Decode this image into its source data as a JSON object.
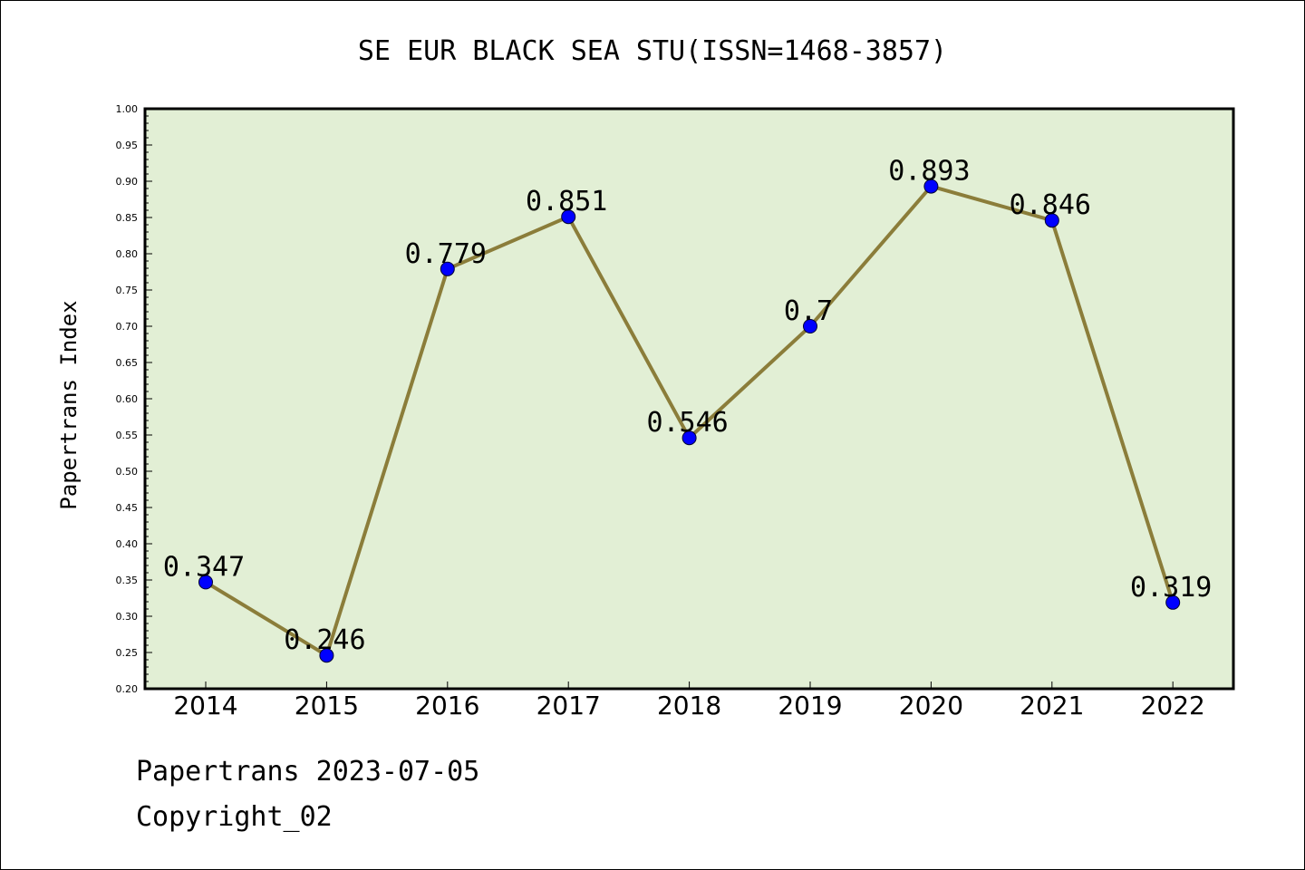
{
  "chart_data": {
    "type": "line",
    "title": "SE EUR BLACK SEA STU(ISSN=1468-3857)",
    "xlabel": "",
    "ylabel": "Papertrans Index",
    "x": [
      "2014",
      "2015",
      "2016",
      "2017",
      "2018",
      "2019",
      "2020",
      "2021",
      "2022"
    ],
    "values": [
      0.347,
      0.246,
      0.779,
      0.851,
      0.546,
      0.7,
      0.893,
      0.846,
      0.319
    ],
    "data_labels": [
      "0.347",
      "0.246",
      "0.779",
      "0.851",
      "0.546",
      "0.7",
      "0.893",
      "0.846",
      "0.319"
    ],
    "ylim": [
      0.2,
      1.0
    ],
    "yticks": [
      "0.20",
      "0.25",
      "0.30",
      "0.35",
      "0.40",
      "0.45",
      "0.50",
      "0.55",
      "0.60",
      "0.65",
      "0.70",
      "0.75",
      "0.80",
      "0.85",
      "0.90",
      "0.95",
      "1.00"
    ],
    "grid": false,
    "colors": {
      "plot_background": "#e2efd5",
      "line": "#8b7d3a",
      "marker": "#0000ff"
    }
  },
  "footer": {
    "line1": "Papertrans 2023-07-05",
    "line2": "Copyright_02"
  }
}
